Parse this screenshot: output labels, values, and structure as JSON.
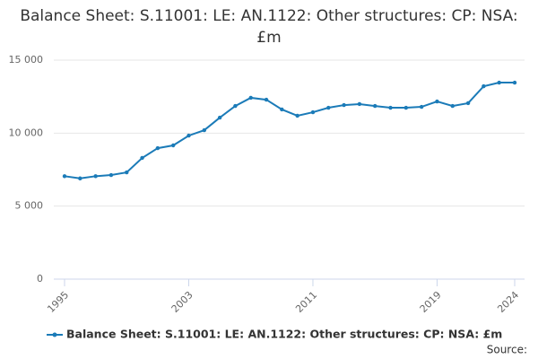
{
  "chart_data": {
    "type": "line",
    "title": "Balance Sheet: S.11001: LE: AN.1122: Other structures: CP: NSA: £m",
    "x": [
      1995,
      1996,
      1997,
      1998,
      1999,
      2000,
      2001,
      2002,
      2003,
      2004,
      2005,
      2006,
      2007,
      2008,
      2009,
      2010,
      2011,
      2012,
      2013,
      2014,
      2015,
      2016,
      2017,
      2018,
      2019,
      2020,
      2021,
      2022,
      2023,
      2024
    ],
    "series": [
      {
        "name": "Balance Sheet: S.11001: LE: AN.1122: Other structures: CP: NSA: £m",
        "color": "#1b7bb8",
        "values": [
          7050,
          6900,
          7050,
          7130,
          7310,
          8300,
          8970,
          9160,
          9830,
          10200,
          11060,
          11860,
          12420,
          12290,
          11620,
          11190,
          11430,
          11740,
          11920,
          11990,
          11860,
          11740,
          11740,
          11800,
          12170,
          11860,
          12050,
          13210,
          13460,
          13460
        ]
      }
    ],
    "xlim": [
      1995,
      2024
    ],
    "xticks": [
      1995,
      2003,
      2011,
      2019,
      2024
    ],
    "ylim": [
      0,
      15000
    ],
    "yticks": [
      0,
      {
        "value": 5000,
        "label": "5 000"
      },
      {
        "value": 10000,
        "label": "10 000"
      },
      {
        "value": 15000,
        "label": "15 000"
      }
    ],
    "grid": true,
    "source": "Source:"
  }
}
